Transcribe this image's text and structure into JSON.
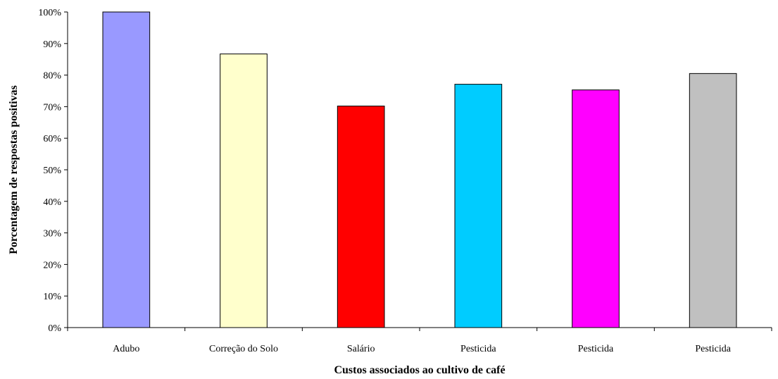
{
  "chart_data": {
    "type": "bar",
    "title": "",
    "xlabel": "Custos associados ao cultivo de café",
    "ylabel": "Porcentagem de respostas positivas",
    "categories": [
      "Adubo",
      "Correção do Solo",
      "Salário",
      "Pesticida",
      "Pesticida",
      "Pesticida"
    ],
    "values": [
      100,
      86.7,
      70.2,
      77.1,
      75.3,
      80.5
    ],
    "colors": [
      "#9999ff",
      "#ffffcc",
      "#ff0000",
      "#00ccff",
      "#ff00ff",
      "#c0c0c0"
    ],
    "ylim": [
      0,
      100
    ],
    "yticks": [
      "0%",
      "10%",
      "20%",
      "30%",
      "40%",
      "50%",
      "60%",
      "70%",
      "80%",
      "90%",
      "100%"
    ],
    "grid": false,
    "legend": "none"
  }
}
